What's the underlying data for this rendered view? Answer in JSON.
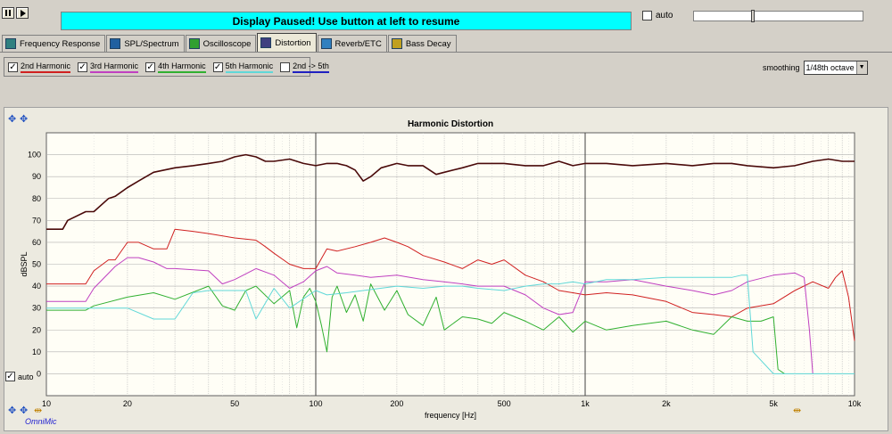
{
  "banner": {
    "text": "Display Paused! Use button at left to resume"
  },
  "top_auto": {
    "label": "auto",
    "checked": false
  },
  "tabs": [
    {
      "label": "Frequency Response",
      "icon": "frequency-response-icon",
      "active": false
    },
    {
      "label": "SPL/Spectrum",
      "icon": "spl-spectrum-icon",
      "active": false
    },
    {
      "label": "Oscilloscope",
      "icon": "oscilloscope-icon",
      "active": false
    },
    {
      "label": "Distortion",
      "icon": "distortion-icon",
      "active": true
    },
    {
      "label": "Reverb/ETC",
      "icon": "reverb-icon",
      "active": false
    },
    {
      "label": "Bass Decay",
      "icon": "bass-decay-icon",
      "active": false
    }
  ],
  "harmonics": [
    {
      "label": "2nd Harmonic",
      "checked": true,
      "color": "#d02020"
    },
    {
      "label": "3rd Harmonic",
      "checked": true,
      "color": "#c040c0"
    },
    {
      "label": "4th Harmonic",
      "checked": true,
      "color": "#30b030"
    },
    {
      "label": "5th Harmonic",
      "checked": true,
      "color": "#60d8d8"
    },
    {
      "label": "2nd -> 5th",
      "checked": false,
      "color": "#2020c0"
    }
  ],
  "smoothing": {
    "label": "smoothing",
    "value": "1/48th octave"
  },
  "bottom_auto": {
    "label": "auto",
    "checked": true
  },
  "brand": "OmniMic",
  "chart_data": {
    "type": "line",
    "title": "Harmonic Distortion",
    "xlabel": "frequency [Hz]",
    "ylabel": "dBSPL",
    "x_scale": "log",
    "xlim": [
      10,
      10000
    ],
    "ylim": [
      -10,
      110
    ],
    "x_ticks": [
      10,
      20,
      50,
      100,
      200,
      500,
      1000,
      2000,
      5000,
      10000
    ],
    "x_tick_labels": [
      "10",
      "20",
      "50",
      "100",
      "200",
      "500",
      "1k",
      "2k",
      "5k",
      "10k"
    ],
    "y_ticks": [
      0,
      10,
      20,
      30,
      40,
      50,
      60,
      70,
      80,
      90,
      100
    ],
    "y_tick_labels": [
      "0",
      "10",
      "20",
      "30",
      "40",
      "50",
      "60",
      "70",
      "80",
      "90",
      "100"
    ],
    "grid": true,
    "series": [
      {
        "name": "Fundamental",
        "color": "#4a0a0a",
        "x": [
          10,
          11.5,
          12,
          14,
          15,
          17,
          18,
          20,
          22,
          25,
          30,
          35,
          40,
          45,
          50,
          55,
          60,
          65,
          70,
          80,
          90,
          100,
          110,
          120,
          130,
          140,
          150,
          160,
          175,
          200,
          220,
          250,
          280,
          300,
          350,
          400,
          500,
          600,
          700,
          800,
          900,
          1000,
          1200,
          1500,
          2000,
          2500,
          3000,
          3500,
          4000,
          5000,
          6000,
          7000,
          8000,
          9000,
          10000
        ],
        "y": [
          66,
          66,
          70,
          74,
          74,
          80,
          81,
          85,
          88,
          92,
          94,
          95,
          96,
          97,
          99,
          100,
          99,
          97,
          97,
          98,
          96,
          95,
          96,
          96,
          95,
          93,
          88,
          90,
          94,
          96,
          95,
          95,
          91,
          92,
          94,
          96,
          96,
          95,
          95,
          97,
          95,
          96,
          96,
          95,
          96,
          95,
          96,
          96,
          95,
          94,
          95,
          97,
          98,
          97,
          97
        ]
      },
      {
        "name": "2nd Harmonic",
        "color": "#d02020",
        "x": [
          10,
          14,
          15,
          17,
          18,
          20,
          22,
          25,
          28,
          30,
          35,
          40,
          50,
          60,
          65,
          70,
          80,
          90,
          100,
          110,
          120,
          140,
          160,
          180,
          200,
          220,
          250,
          300,
          350,
          400,
          450,
          500,
          600,
          700,
          800,
          900,
          1000,
          1200,
          1500,
          2000,
          2500,
          3000,
          3500,
          4000,
          5000,
          6000,
          7000,
          8000,
          8500,
          9000,
          9500,
          10000
        ],
        "y": [
          41,
          41,
          47,
          52,
          52,
          60,
          60,
          57,
          57,
          66,
          65,
          64,
          62,
          61,
          58,
          55,
          50,
          48,
          48,
          57,
          56,
          58,
          60,
          62,
          60,
          58,
          54,
          51,
          48,
          52,
          50,
          52,
          45,
          42,
          38,
          37,
          36,
          37,
          36,
          33,
          28,
          27,
          26,
          30,
          32,
          38,
          42,
          39,
          44,
          47,
          35,
          15
        ]
      },
      {
        "name": "3rd Harmonic",
        "color": "#c040c0",
        "x": [
          10,
          14,
          15,
          18,
          20,
          22,
          25,
          28,
          30,
          40,
          45,
          50,
          60,
          70,
          80,
          90,
          100,
          110,
          120,
          140,
          160,
          200,
          250,
          300,
          350,
          400,
          500,
          600,
          700,
          800,
          900,
          1000,
          1200,
          1500,
          2000,
          2500,
          3000,
          3500,
          4000,
          5000,
          6000,
          6500,
          6800,
          7000
        ],
        "y": [
          33,
          33,
          39,
          49,
          53,
          53,
          51,
          48,
          48,
          47,
          41,
          43,
          48,
          45,
          39,
          42,
          47,
          49,
          46,
          45,
          44,
          45,
          43,
          42,
          41,
          40,
          40,
          36,
          30,
          27,
          28,
          42,
          42,
          43,
          40,
          38,
          36,
          38,
          42,
          45,
          46,
          44,
          20,
          0
        ]
      },
      {
        "name": "4th Harmonic",
        "color": "#30b030",
        "x": [
          10,
          14,
          15,
          20,
          25,
          30,
          40,
          45,
          50,
          55,
          60,
          70,
          80,
          85,
          90,
          95,
          100,
          105,
          110,
          115,
          120,
          130,
          140,
          150,
          160,
          180,
          200,
          220,
          250,
          280,
          300,
          350,
          400,
          450,
          500,
          600,
          700,
          800,
          900,
          1000,
          1200,
          1500,
          2000,
          2500,
          3000,
          3500,
          4000,
          4500,
          5000,
          5200,
          5500
        ],
        "y": [
          29,
          29,
          31,
          35,
          37,
          34,
          40,
          31,
          29,
          38,
          40,
          32,
          38,
          21,
          35,
          39,
          33,
          22,
          10,
          35,
          40,
          28,
          36,
          24,
          41,
          29,
          38,
          27,
          22,
          35,
          20,
          26,
          25,
          23,
          28,
          24,
          20,
          26,
          19,
          24,
          20,
          22,
          24,
          20,
          18,
          26,
          24,
          24,
          26,
          2,
          0
        ]
      },
      {
        "name": "5th Harmonic",
        "color": "#60d8d8",
        "x": [
          10,
          20,
          25,
          30,
          35,
          40,
          45,
          50,
          55,
          60,
          70,
          80,
          100,
          110,
          130,
          150,
          200,
          250,
          300,
          350,
          400,
          500,
          600,
          700,
          800,
          900,
          1000,
          1200,
          1500,
          2000,
          2500,
          3000,
          3500,
          3800,
          4000,
          4200,
          5000,
          7000,
          10000
        ],
        "y": [
          30,
          30,
          25,
          25,
          37,
          38,
          38,
          38,
          38,
          25,
          39,
          30,
          38,
          36,
          37,
          38,
          40,
          39,
          40,
          40,
          39,
          38,
          40,
          41,
          41,
          42,
          41,
          43,
          43,
          44,
          44,
          44,
          44,
          45,
          45,
          10,
          0,
          0,
          0
        ]
      }
    ]
  }
}
